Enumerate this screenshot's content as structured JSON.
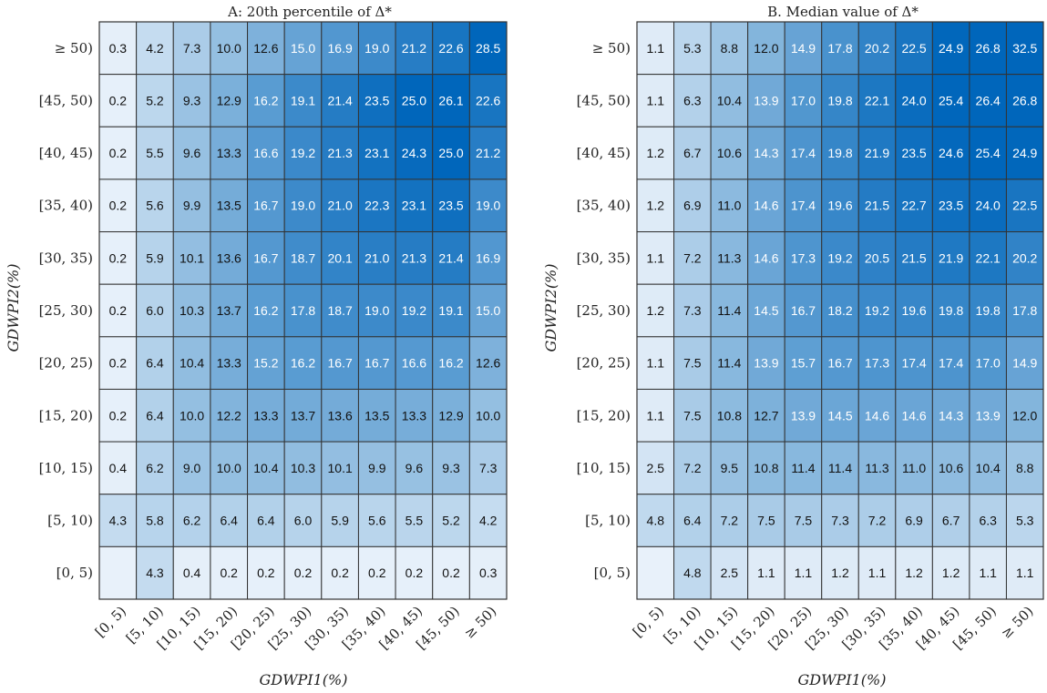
{
  "chart_data": [
    {
      "type": "heatmap",
      "title": "A: 20th percentile of Δ*",
      "xlabel": "GDWPI1(%)",
      "ylabel": "GDWPI2(%)",
      "x_categories": [
        "[0, 5)",
        "[5, 10)",
        "[10, 15)",
        "[15, 20)",
        "[20, 25)",
        "[25, 30)",
        "[30, 35)",
        "[35, 40)",
        "[40, 45)",
        "[45, 50)",
        "≥ 50)"
      ],
      "y_categories": [
        "≥ 50)",
        "[45, 50)",
        "[40, 45)",
        "[35, 40)",
        "[30, 35)",
        "[25, 30)",
        "[20, 25)",
        "[15, 20)",
        "[10, 15)",
        "[5, 10)",
        "[0, 5)"
      ],
      "values": [
        [
          "0.3",
          "4.2",
          "7.3",
          "10.0",
          "12.6",
          "15.0",
          "16.9",
          "19.0",
          "21.2",
          "22.6",
          "28.5"
        ],
        [
          "0.2",
          "5.2",
          "9.3",
          "12.9",
          "16.2",
          "19.1",
          "21.4",
          "23.5",
          "25.0",
          "26.1",
          "22.6"
        ],
        [
          "0.2",
          "5.5",
          "9.6",
          "13.3",
          "16.6",
          "19.2",
          "21.3",
          "23.1",
          "24.3",
          "25.0",
          "21.2"
        ],
        [
          "0.2",
          "5.6",
          "9.9",
          "13.5",
          "16.7",
          "19.0",
          "21.0",
          "22.3",
          "23.1",
          "23.5",
          "19.0"
        ],
        [
          "0.2",
          "5.9",
          "10.1",
          "13.6",
          "16.7",
          "18.7",
          "20.1",
          "21.0",
          "21.3",
          "21.4",
          "16.9"
        ],
        [
          "0.2",
          "6.0",
          "10.3",
          "13.7",
          "16.2",
          "17.8",
          "18.7",
          "19.0",
          "19.2",
          "19.1",
          "15.0"
        ],
        [
          "0.2",
          "6.4",
          "10.4",
          "13.3",
          "15.2",
          "16.2",
          "16.7",
          "16.7",
          "16.6",
          "16.2",
          "12.6"
        ],
        [
          "0.2",
          "6.4",
          "10.0",
          "12.2",
          "13.3",
          "13.7",
          "13.6",
          "13.5",
          "13.3",
          "12.9",
          "10.0"
        ],
        [
          "0.4",
          "6.2",
          "9.0",
          "10.0",
          "10.4",
          "10.3",
          "10.1",
          "9.9",
          "9.6",
          "9.3",
          "7.3"
        ],
        [
          "4.3",
          "5.8",
          "6.2",
          "6.4",
          "6.4",
          "6.0",
          "5.9",
          "5.6",
          "5.5",
          "5.2",
          "4.2"
        ],
        [
          "",
          "4.3",
          "0.4",
          "0.2",
          "0.2",
          "0.2",
          "0.2",
          "0.2",
          "0.2",
          "0.2",
          "0.3"
        ]
      ]
    },
    {
      "type": "heatmap",
      "title": "B. Median value of Δ*",
      "xlabel": "GDWPI1(%)",
      "ylabel": "GDWPI2(%)",
      "x_categories": [
        "[0, 5)",
        "[5, 10)",
        "[10, 15)",
        "[15, 20)",
        "[20, 25)",
        "[25, 30)",
        "[30, 35)",
        "[35, 40)",
        "[40, 45)",
        "[45, 50)",
        "≥ 50)"
      ],
      "y_categories": [
        "≥ 50)",
        "[45, 50)",
        "[40, 45)",
        "[35, 40)",
        "[30, 35)",
        "[25, 30)",
        "[20, 25)",
        "[15, 20)",
        "[10, 15)",
        "[5, 10)",
        "[0, 5)"
      ],
      "values": [
        [
          "1.1",
          "5.3",
          "8.8",
          "12.0",
          "14.9",
          "17.8",
          "20.2",
          "22.5",
          "24.9",
          "26.8",
          "32.5"
        ],
        [
          "1.1",
          "6.3",
          "10.4",
          "13.9",
          "17.0",
          "19.8",
          "22.1",
          "24.0",
          "25.4",
          "26.4",
          "26.8"
        ],
        [
          "1.2",
          "6.7",
          "10.6",
          "14.3",
          "17.4",
          "19.8",
          "21.9",
          "23.5",
          "24.6",
          "25.4",
          "24.9"
        ],
        [
          "1.2",
          "6.9",
          "11.0",
          "14.6",
          "17.4",
          "19.6",
          "21.5",
          "22.7",
          "23.5",
          "24.0",
          "22.5"
        ],
        [
          "1.1",
          "7.2",
          "11.3",
          "14.6",
          "17.3",
          "19.2",
          "20.5",
          "21.5",
          "21.9",
          "22.1",
          "20.2"
        ],
        [
          "1.2",
          "7.3",
          "11.4",
          "14.5",
          "16.7",
          "18.2",
          "19.2",
          "19.6",
          "19.8",
          "19.8",
          "17.8"
        ],
        [
          "1.1",
          "7.5",
          "11.4",
          "13.9",
          "15.7",
          "16.7",
          "17.3",
          "17.4",
          "17.4",
          "17.0",
          "14.9"
        ],
        [
          "1.1",
          "7.5",
          "10.8",
          "12.7",
          "13.9",
          "14.5",
          "14.6",
          "14.6",
          "14.3",
          "13.9",
          "12.0"
        ],
        [
          "2.5",
          "7.2",
          "9.5",
          "10.8",
          "11.4",
          "11.4",
          "11.3",
          "11.0",
          "10.6",
          "10.4",
          "8.8"
        ],
        [
          "4.8",
          "6.4",
          "7.2",
          "7.5",
          "7.5",
          "7.3",
          "7.2",
          "6.9",
          "6.7",
          "6.3",
          "5.3"
        ],
        [
          "",
          "4.8",
          "2.5",
          "1.1",
          "1.1",
          "1.2",
          "1.1",
          "1.2",
          "1.2",
          "1.1",
          "1.1"
        ]
      ]
    }
  ],
  "colors": {
    "low": "#e8f1fa",
    "mid": "#7fb2db",
    "high": "#0066bb",
    "grid": "#333333"
  }
}
